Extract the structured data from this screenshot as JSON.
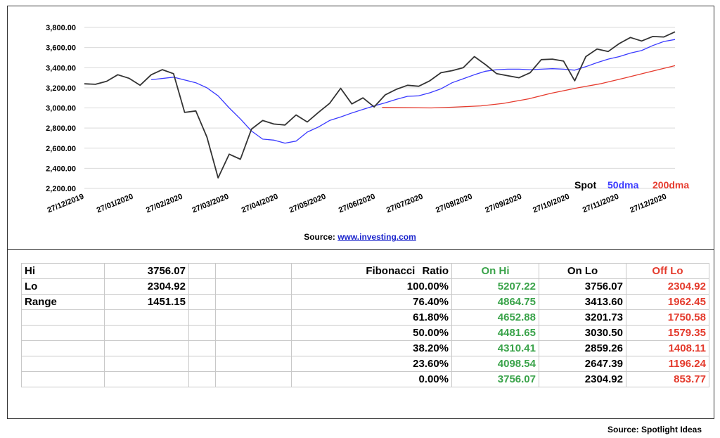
{
  "chart_data": {
    "type": "line",
    "y_ticks": [
      "3,800.00",
      "3,600.00",
      "3,400.00",
      "3,200.00",
      "3,000.00",
      "2,800.00",
      "2,600.00",
      "2,400.00",
      "2,200.00"
    ],
    "ylim": [
      2200,
      3800
    ],
    "x_ticks": [
      "27/12/2019",
      "27/01/2020",
      "27/02/2020",
      "27/03/2020",
      "27/04/2020",
      "27/05/2020",
      "27/06/2020",
      "27/07/2020",
      "27/08/2020",
      "27/09/2020",
      "27/10/2020",
      "27/11/2020",
      "27/12/2020"
    ],
    "grid": true,
    "legend_position": "bottom-right",
    "series": [
      {
        "name": "Spot",
        "color": "#333333",
        "points": [
          [
            "2019-12-27",
            3240
          ],
          [
            "2020-01-03",
            3235
          ],
          [
            "2020-01-10",
            3265
          ],
          [
            "2020-01-17",
            3330
          ],
          [
            "2020-01-24",
            3295
          ],
          [
            "2020-01-31",
            3225
          ],
          [
            "2020-02-07",
            3330
          ],
          [
            "2020-02-14",
            3380
          ],
          [
            "2020-02-21",
            3340
          ],
          [
            "2020-02-28",
            2955
          ],
          [
            "2020-03-06",
            2970
          ],
          [
            "2020-03-13",
            2710
          ],
          [
            "2020-03-20",
            2305
          ],
          [
            "2020-03-27",
            2540
          ],
          [
            "2020-04-03",
            2490
          ],
          [
            "2020-04-10",
            2790
          ],
          [
            "2020-04-17",
            2875
          ],
          [
            "2020-04-24",
            2840
          ],
          [
            "2020-05-01",
            2830
          ],
          [
            "2020-05-08",
            2930
          ],
          [
            "2020-05-15",
            2860
          ],
          [
            "2020-05-22",
            2955
          ],
          [
            "2020-05-29",
            3045
          ],
          [
            "2020-06-05",
            3195
          ],
          [
            "2020-06-12",
            3040
          ],
          [
            "2020-06-19",
            3100
          ],
          [
            "2020-06-26",
            3010
          ],
          [
            "2020-07-03",
            3130
          ],
          [
            "2020-07-10",
            3185
          ],
          [
            "2020-07-17",
            3225
          ],
          [
            "2020-07-24",
            3215
          ],
          [
            "2020-07-31",
            3270
          ],
          [
            "2020-08-07",
            3350
          ],
          [
            "2020-08-14",
            3370
          ],
          [
            "2020-08-21",
            3400
          ],
          [
            "2020-08-28",
            3510
          ],
          [
            "2020-09-04",
            3430
          ],
          [
            "2020-09-11",
            3340
          ],
          [
            "2020-09-18",
            3320
          ],
          [
            "2020-09-25",
            3300
          ],
          [
            "2020-10-02",
            3350
          ],
          [
            "2020-10-09",
            3480
          ],
          [
            "2020-10-16",
            3485
          ],
          [
            "2020-10-23",
            3465
          ],
          [
            "2020-10-30",
            3270
          ],
          [
            "2020-11-06",
            3510
          ],
          [
            "2020-11-13",
            3585
          ],
          [
            "2020-11-20",
            3560
          ],
          [
            "2020-11-27",
            3640
          ],
          [
            "2020-12-04",
            3700
          ],
          [
            "2020-12-11",
            3665
          ],
          [
            "2020-12-18",
            3710
          ],
          [
            "2020-12-25",
            3705
          ],
          [
            "2021-01-01",
            3756
          ]
        ]
      },
      {
        "name": "50dma",
        "color": "#3a3aff",
        "points": [
          [
            "2020-02-07",
            3280
          ],
          [
            "2020-02-21",
            3305
          ],
          [
            "2020-03-06",
            3250
          ],
          [
            "2020-03-13",
            3200
          ],
          [
            "2020-03-20",
            3120
          ],
          [
            "2020-03-27",
            3000
          ],
          [
            "2020-04-03",
            2890
          ],
          [
            "2020-04-10",
            2770
          ],
          [
            "2020-04-17",
            2690
          ],
          [
            "2020-04-24",
            2680
          ],
          [
            "2020-05-01",
            2650
          ],
          [
            "2020-05-08",
            2670
          ],
          [
            "2020-05-15",
            2760
          ],
          [
            "2020-05-22",
            2810
          ],
          [
            "2020-05-29",
            2875
          ],
          [
            "2020-06-05",
            2910
          ],
          [
            "2020-06-12",
            2950
          ],
          [
            "2020-06-19",
            2985
          ],
          [
            "2020-06-26",
            3020
          ],
          [
            "2020-07-03",
            3050
          ],
          [
            "2020-07-10",
            3085
          ],
          [
            "2020-07-17",
            3115
          ],
          [
            "2020-07-24",
            3120
          ],
          [
            "2020-07-31",
            3150
          ],
          [
            "2020-08-07",
            3190
          ],
          [
            "2020-08-14",
            3250
          ],
          [
            "2020-08-21",
            3290
          ],
          [
            "2020-08-28",
            3330
          ],
          [
            "2020-09-04",
            3365
          ],
          [
            "2020-09-11",
            3380
          ],
          [
            "2020-09-18",
            3385
          ],
          [
            "2020-09-25",
            3385
          ],
          [
            "2020-10-02",
            3380
          ],
          [
            "2020-10-09",
            3385
          ],
          [
            "2020-10-16",
            3390
          ],
          [
            "2020-10-23",
            3385
          ],
          [
            "2020-10-30",
            3375
          ],
          [
            "2020-11-06",
            3410
          ],
          [
            "2020-11-13",
            3450
          ],
          [
            "2020-11-20",
            3485
          ],
          [
            "2020-11-27",
            3510
          ],
          [
            "2020-12-04",
            3545
          ],
          [
            "2020-12-11",
            3570
          ],
          [
            "2020-12-18",
            3620
          ],
          [
            "2020-12-25",
            3660
          ],
          [
            "2021-01-01",
            3680
          ]
        ]
      },
      {
        "name": "200dma",
        "color": "#e63b2e",
        "points": [
          [
            "2020-07-01",
            3005
          ],
          [
            "2020-07-15",
            3002
          ],
          [
            "2020-08-01",
            3000
          ],
          [
            "2020-08-15",
            3008
          ],
          [
            "2020-09-01",
            3020
          ],
          [
            "2020-09-15",
            3045
          ],
          [
            "2020-10-01",
            3090
          ],
          [
            "2020-10-15",
            3145
          ],
          [
            "2020-11-01",
            3200
          ],
          [
            "2020-11-15",
            3240
          ],
          [
            "2020-12-01",
            3300
          ],
          [
            "2020-12-15",
            3355
          ],
          [
            "2021-01-01",
            3420
          ]
        ]
      }
    ]
  },
  "source_label": "Source:",
  "source_link": "www.investing.com",
  "table": {
    "left": [
      {
        "label": "Hi",
        "value": "3756.07"
      },
      {
        "label": "Lo",
        "value": "2304.92"
      },
      {
        "label": "Range",
        "value": "1451.15"
      },
      {
        "label": "",
        "value": ""
      },
      {
        "label": "",
        "value": ""
      },
      {
        "label": "",
        "value": ""
      },
      {
        "label": "",
        "value": ""
      },
      {
        "label": "",
        "value": ""
      }
    ],
    "headers": {
      "ratio": "Fibonacci Ratio",
      "on_hi": "On Hi",
      "on_lo": "On Lo",
      "off_lo": "Off Lo"
    },
    "rows": [
      {
        "ratio": "100.00%",
        "on_hi": "5207.22",
        "on_lo": "3756.07",
        "off_lo": "2304.92"
      },
      {
        "ratio": "76.40%",
        "on_hi": "4864.75",
        "on_lo": "3413.60",
        "off_lo": "1962.45"
      },
      {
        "ratio": "61.80%",
        "on_hi": "4652.88",
        "on_lo": "3201.73",
        "off_lo": "1750.58"
      },
      {
        "ratio": "50.00%",
        "on_hi": "4481.65",
        "on_lo": "3030.50",
        "off_lo": "1579.35"
      },
      {
        "ratio": "38.20%",
        "on_hi": "4310.41",
        "on_lo": "2859.26",
        "off_lo": "1408.11"
      },
      {
        "ratio": "23.60%",
        "on_hi": "4098.54",
        "on_lo": "2647.39",
        "off_lo": "1196.24"
      },
      {
        "ratio": "0.00%",
        "on_hi": "3756.07",
        "on_lo": "2304.92",
        "off_lo": "853.77"
      }
    ]
  },
  "footer_source": "Source: Spotlight Ideas",
  "colors": {
    "green": "#3aa34a",
    "red": "#e43a2c",
    "blue": "#3a3aff"
  }
}
